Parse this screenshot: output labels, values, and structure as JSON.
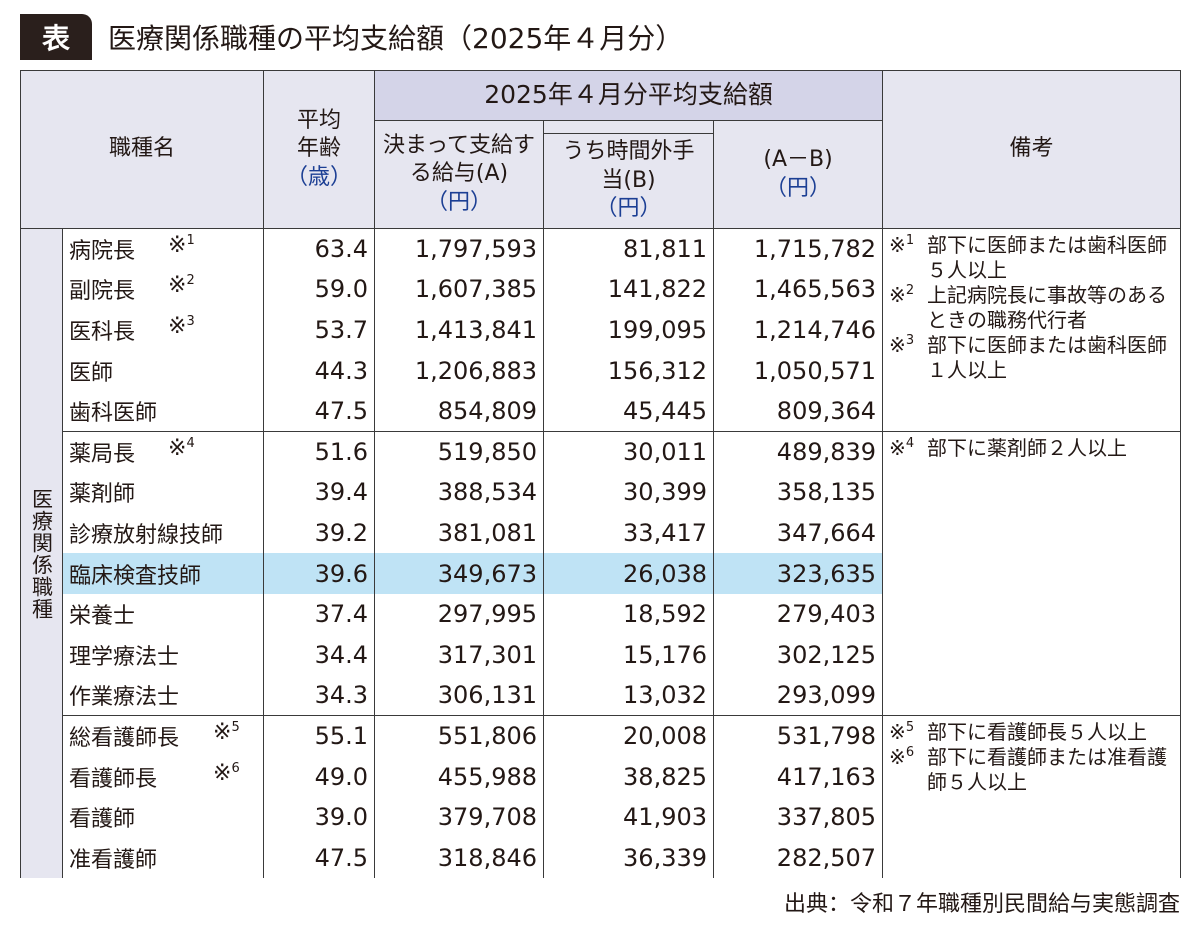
{
  "title": {
    "badge": "表",
    "text": "医療関係職種の平均支給額（2025年４月分）"
  },
  "header": {
    "job": "職種名",
    "age": "平均年齢",
    "age_unit": "（歳）",
    "band": "2025年４月分平均支給額",
    "a": "決まって支給する給与(A)",
    "a_unit": "（円）",
    "b": "うち時間外手当(B)",
    "b_unit": "（円）",
    "ab": "(A－B)",
    "ab_unit": "（円）",
    "notes": "備考"
  },
  "category_label": "医療関係職種",
  "rows": [
    {
      "name": "病院長",
      "mark": "※",
      "sup": "1",
      "age": "63.4",
      "a": "1,797,593",
      "b": "81,811",
      "ab": "1,715,782"
    },
    {
      "name": "副院長",
      "mark": "※",
      "sup": "2",
      "age": "59.0",
      "a": "1,607,385",
      "b": "141,822",
      "ab": "1,465,563"
    },
    {
      "name": "医科長",
      "mark": "※",
      "sup": "3",
      "age": "53.7",
      "a": "1,413,841",
      "b": "199,095",
      "ab": "1,214,746"
    },
    {
      "name": "医師",
      "age": "44.3",
      "a": "1,206,883",
      "b": "156,312",
      "ab": "1,050,571"
    },
    {
      "name": "歯科医師",
      "age": "47.5",
      "a": "854,809",
      "b": "45,445",
      "ab": "809,364"
    },
    {
      "name": "薬局長",
      "mark": "※",
      "sup": "4",
      "age": "51.6",
      "a": "519,850",
      "b": "30,011",
      "ab": "489,839"
    },
    {
      "name": "薬剤師",
      "age": "39.4",
      "a": "388,534",
      "b": "30,399",
      "ab": "358,135"
    },
    {
      "name": "診療放射線技師",
      "age": "39.2",
      "a": "381,081",
      "b": "33,417",
      "ab": "347,664"
    },
    {
      "name": "臨床検査技師",
      "age": "39.6",
      "a": "349,673",
      "b": "26,038",
      "ab": "323,635",
      "highlight": true
    },
    {
      "name": "栄養士",
      "age": "37.4",
      "a": "297,995",
      "b": "18,592",
      "ab": "279,403"
    },
    {
      "name": "理学療法士",
      "age": "34.4",
      "a": "317,301",
      "b": "15,176",
      "ab": "302,125"
    },
    {
      "name": "作業療法士",
      "age": "34.3",
      "a": "306,131",
      "b": "13,032",
      "ab": "293,099"
    },
    {
      "name": "総看護師長",
      "mark": "※",
      "sup": "5",
      "age": "55.1",
      "a": "551,806",
      "b": "20,008",
      "ab": "531,798"
    },
    {
      "name": "看護師長",
      "mark": "※",
      "sup": "6",
      "age": "49.0",
      "a": "455,988",
      "b": "38,825",
      "ab": "417,163"
    },
    {
      "name": "看護師",
      "age": "39.0",
      "a": "379,708",
      "b": "41,903",
      "ab": "337,805"
    },
    {
      "name": "准看護師",
      "age": "47.5",
      "a": "318,846",
      "b": "36,339",
      "ab": "282,507"
    }
  ],
  "notes": [
    {
      "mark": "※",
      "sup": "1",
      "text": "部下に医師または歯科医師５人以上"
    },
    {
      "mark": "※",
      "sup": "2",
      "text": "上記病院長に事故等のあるときの職務代行者"
    },
    {
      "mark": "※",
      "sup": "3",
      "text": "部下に医師または歯科医師１人以上"
    },
    {
      "mark": "※",
      "sup": "4",
      "text": "部下に薬剤師２人以上"
    },
    {
      "mark": "※",
      "sup": "5",
      "text": "部下に看護師長５人以上"
    },
    {
      "mark": "※",
      "sup": "6",
      "text": "部下に看護師または准看護師５人以上"
    }
  ],
  "source": "出典：令和７年職種別民間給与実態調査",
  "colors": {
    "header_bg": "#e6e6f0",
    "band_bg": "#d4d4e8",
    "highlight": "#bfe3f5",
    "unit_blue": "#1c3f94"
  }
}
